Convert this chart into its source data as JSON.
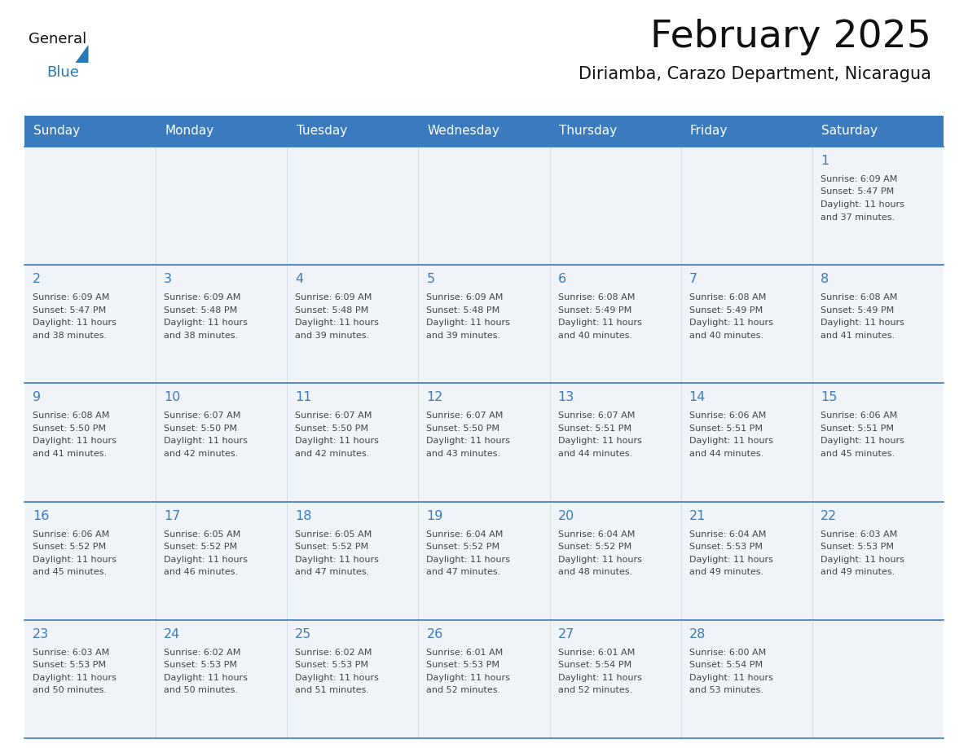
{
  "title": "February 2025",
  "subtitle": "Diriamba, Carazo Department, Nicaragua",
  "days_of_week": [
    "Sunday",
    "Monday",
    "Tuesday",
    "Wednesday",
    "Thursday",
    "Friday",
    "Saturday"
  ],
  "header_bg": "#3a7abf",
  "header_text": "#ffffff",
  "cell_bg": "#f0f4f8",
  "separator_color": "#3a7abf",
  "day_number_color": "#3a7abf",
  "cell_text_color": "#444444",
  "title_color": "#111111",
  "subtitle_color": "#111111",
  "logo_general_color": "#111111",
  "logo_blue_color": "#2878b8",
  "logo_triangle_color": "#2878b8",
  "weeks": [
    [
      {
        "day": null,
        "sunrise": null,
        "sunset": null,
        "daylight": null
      },
      {
        "day": null,
        "sunrise": null,
        "sunset": null,
        "daylight": null
      },
      {
        "day": null,
        "sunrise": null,
        "sunset": null,
        "daylight": null
      },
      {
        "day": null,
        "sunrise": null,
        "sunset": null,
        "daylight": null
      },
      {
        "day": null,
        "sunrise": null,
        "sunset": null,
        "daylight": null
      },
      {
        "day": null,
        "sunrise": null,
        "sunset": null,
        "daylight": null
      },
      {
        "day": 1,
        "sunrise": "6:09 AM",
        "sunset": "5:47 PM",
        "daylight": "11 hours and 37 minutes."
      }
    ],
    [
      {
        "day": 2,
        "sunrise": "6:09 AM",
        "sunset": "5:47 PM",
        "daylight": "11 hours and 38 minutes."
      },
      {
        "day": 3,
        "sunrise": "6:09 AM",
        "sunset": "5:48 PM",
        "daylight": "11 hours and 38 minutes."
      },
      {
        "day": 4,
        "sunrise": "6:09 AM",
        "sunset": "5:48 PM",
        "daylight": "11 hours and 39 minutes."
      },
      {
        "day": 5,
        "sunrise": "6:09 AM",
        "sunset": "5:48 PM",
        "daylight": "11 hours and 39 minutes."
      },
      {
        "day": 6,
        "sunrise": "6:08 AM",
        "sunset": "5:49 PM",
        "daylight": "11 hours and 40 minutes."
      },
      {
        "day": 7,
        "sunrise": "6:08 AM",
        "sunset": "5:49 PM",
        "daylight": "11 hours and 40 minutes."
      },
      {
        "day": 8,
        "sunrise": "6:08 AM",
        "sunset": "5:49 PM",
        "daylight": "11 hours and 41 minutes."
      }
    ],
    [
      {
        "day": 9,
        "sunrise": "6:08 AM",
        "sunset": "5:50 PM",
        "daylight": "11 hours and 41 minutes."
      },
      {
        "day": 10,
        "sunrise": "6:07 AM",
        "sunset": "5:50 PM",
        "daylight": "11 hours and 42 minutes."
      },
      {
        "day": 11,
        "sunrise": "6:07 AM",
        "sunset": "5:50 PM",
        "daylight": "11 hours and 42 minutes."
      },
      {
        "day": 12,
        "sunrise": "6:07 AM",
        "sunset": "5:50 PM",
        "daylight": "11 hours and 43 minutes."
      },
      {
        "day": 13,
        "sunrise": "6:07 AM",
        "sunset": "5:51 PM",
        "daylight": "11 hours and 44 minutes."
      },
      {
        "day": 14,
        "sunrise": "6:06 AM",
        "sunset": "5:51 PM",
        "daylight": "11 hours and 44 minutes."
      },
      {
        "day": 15,
        "sunrise": "6:06 AM",
        "sunset": "5:51 PM",
        "daylight": "11 hours and 45 minutes."
      }
    ],
    [
      {
        "day": 16,
        "sunrise": "6:06 AM",
        "sunset": "5:52 PM",
        "daylight": "11 hours and 45 minutes."
      },
      {
        "day": 17,
        "sunrise": "6:05 AM",
        "sunset": "5:52 PM",
        "daylight": "11 hours and 46 minutes."
      },
      {
        "day": 18,
        "sunrise": "6:05 AM",
        "sunset": "5:52 PM",
        "daylight": "11 hours and 47 minutes."
      },
      {
        "day": 19,
        "sunrise": "6:04 AM",
        "sunset": "5:52 PM",
        "daylight": "11 hours and 47 minutes."
      },
      {
        "day": 20,
        "sunrise": "6:04 AM",
        "sunset": "5:52 PM",
        "daylight": "11 hours and 48 minutes."
      },
      {
        "day": 21,
        "sunrise": "6:04 AM",
        "sunset": "5:53 PM",
        "daylight": "11 hours and 49 minutes."
      },
      {
        "day": 22,
        "sunrise": "6:03 AM",
        "sunset": "5:53 PM",
        "daylight": "11 hours and 49 minutes."
      }
    ],
    [
      {
        "day": 23,
        "sunrise": "6:03 AM",
        "sunset": "5:53 PM",
        "daylight": "11 hours and 50 minutes."
      },
      {
        "day": 24,
        "sunrise": "6:02 AM",
        "sunset": "5:53 PM",
        "daylight": "11 hours and 50 minutes."
      },
      {
        "day": 25,
        "sunrise": "6:02 AM",
        "sunset": "5:53 PM",
        "daylight": "11 hours and 51 minutes."
      },
      {
        "day": 26,
        "sunrise": "6:01 AM",
        "sunset": "5:53 PM",
        "daylight": "11 hours and 52 minutes."
      },
      {
        "day": 27,
        "sunrise": "6:01 AM",
        "sunset": "5:54 PM",
        "daylight": "11 hours and 52 minutes."
      },
      {
        "day": 28,
        "sunrise": "6:00 AM",
        "sunset": "5:54 PM",
        "daylight": "11 hours and 53 minutes."
      },
      {
        "day": null,
        "sunrise": null,
        "sunset": null,
        "daylight": null
      }
    ]
  ]
}
